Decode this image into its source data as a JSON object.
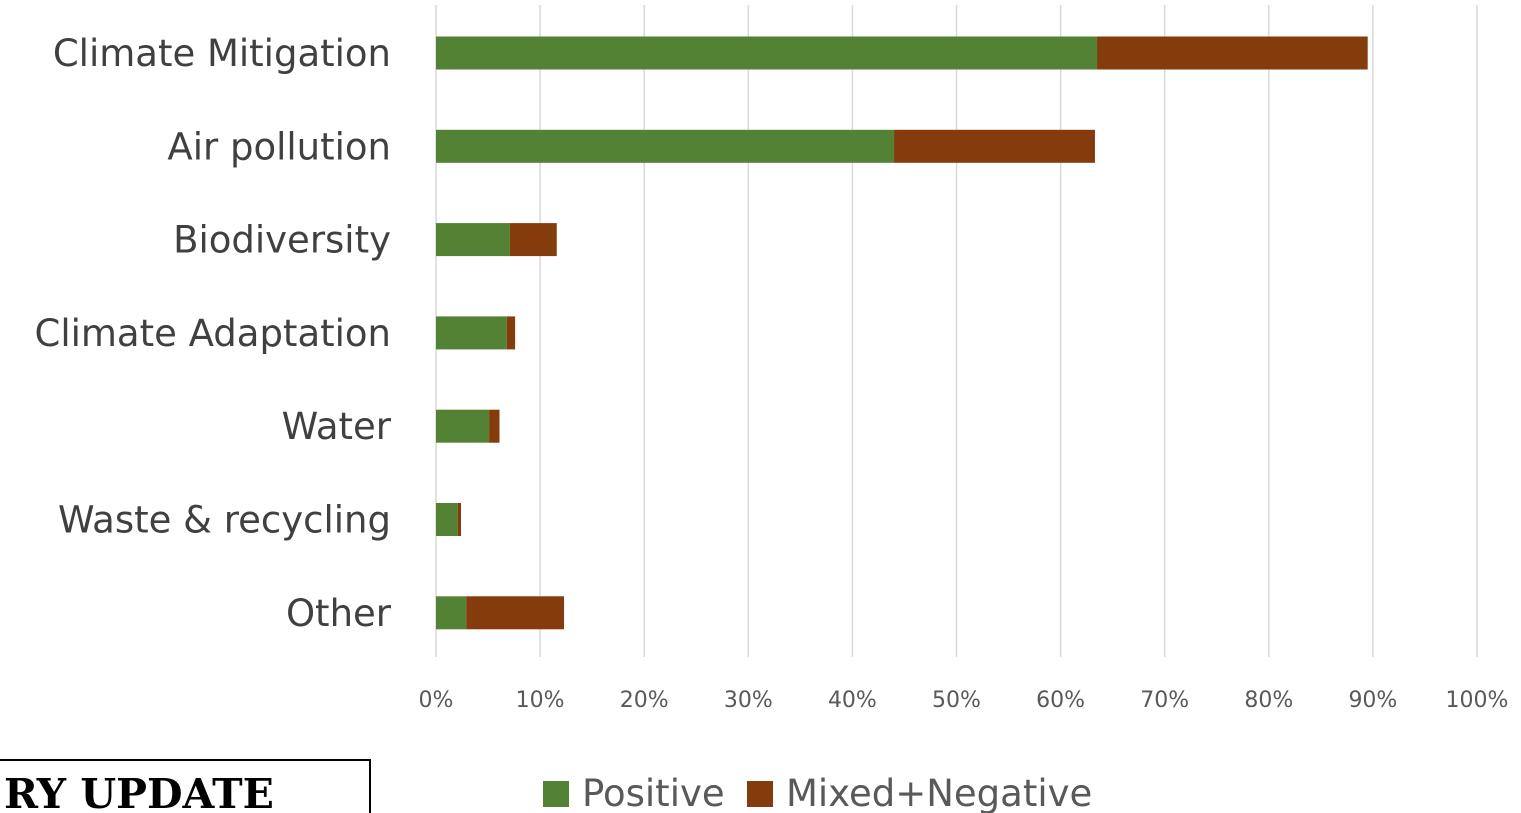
{
  "chart_data": {
    "type": "bar",
    "orientation": "horizontal",
    "stacked": true,
    "categories": [
      "Climate Mitigation",
      "Air pollution",
      "Biodiversity",
      "Climate Adaptation",
      "Water",
      "Waste & recycling",
      "Other"
    ],
    "series": [
      {
        "name": "Positive",
        "color": "#548235",
        "values": [
          63.5,
          44.0,
          7.1,
          6.8,
          5.1,
          2.1,
          2.9
        ]
      },
      {
        "name": "Mixed+Negative",
        "color": "#843c0c",
        "values": [
          26.0,
          19.3,
          4.5,
          0.8,
          1.0,
          0.3,
          9.4
        ]
      }
    ],
    "xlim": [
      0,
      100
    ],
    "x_ticks": [
      "0%",
      "10%",
      "20%",
      "30%",
      "40%",
      "50%",
      "60%",
      "70%",
      "80%",
      "90%",
      "100%"
    ],
    "grid": "vertical",
    "legend_position": "bottom"
  },
  "overlay_box": {
    "text": "RY UPDATE"
  }
}
